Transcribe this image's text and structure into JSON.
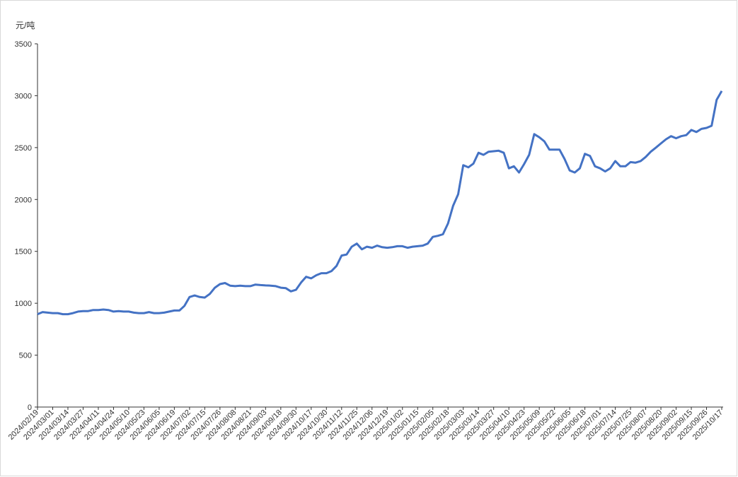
{
  "chart_data": {
    "type": "line",
    "y_label": "元/吨",
    "ylim": [
      0,
      3500
    ],
    "yticks": [
      0,
      500,
      1000,
      1500,
      2000,
      2500,
      3000,
      3500
    ],
    "categories": [
      "2024/02/19",
      null,
      null,
      "2024/03/01",
      null,
      null,
      "2024/03/14",
      null,
      null,
      "2024/03/27",
      null,
      null,
      "2024/04/11",
      null,
      null,
      "2024/04/24",
      null,
      null,
      "2024/05/10",
      null,
      null,
      "2024/05/23",
      null,
      null,
      "2024/06/05",
      null,
      null,
      "2024/06/19",
      null,
      null,
      "2024/07/02",
      null,
      null,
      "2024/07/15",
      null,
      null,
      "2024/07/26",
      null,
      null,
      "2024/08/08",
      null,
      null,
      "2024/08/21",
      null,
      null,
      "2024/09/03",
      null,
      null,
      "2024/09/18",
      null,
      null,
      "2024/09/30",
      null,
      null,
      "2024/10/17",
      null,
      null,
      "2024/10/30",
      null,
      null,
      "2024/11/12",
      null,
      null,
      "2024/11/25",
      null,
      null,
      "2024/12/06",
      null,
      null,
      "2024/12/19",
      null,
      null,
      "2025/01/02",
      null,
      null,
      "2025/01/15",
      null,
      null,
      "2025/02/05",
      null,
      null,
      "2025/02/18",
      null,
      null,
      "2025/03/03",
      null,
      null,
      "2025/03/14",
      null,
      null,
      "2025/03/27",
      null,
      null,
      "2025/04/10",
      null,
      null,
      "2025/04/23",
      null,
      null,
      "2025/05/09",
      null,
      null,
      "2025/05/22",
      null,
      null,
      "2025/06/05",
      null,
      null,
      "2025/06/18",
      null,
      null,
      "2025/07/01",
      null,
      null,
      "2025/07/14",
      null,
      null,
      "2025/07/25",
      null,
      null,
      "2025/08/07",
      null,
      null,
      "2025/08/20",
      null,
      null,
      "2025/09/02",
      null,
      null,
      "2025/09/15",
      null,
      null,
      "2025/09/26",
      null,
      null,
      "2025/10/17"
    ],
    "series": [
      {
        "color": "#4472c4",
        "values": [
          895,
          915,
          910,
          905,
          905,
          895,
          895,
          905,
          920,
          925,
          925,
          935,
          935,
          940,
          935,
          920,
          925,
          920,
          920,
          910,
          905,
          905,
          915,
          905,
          905,
          910,
          920,
          930,
          930,
          975,
          1060,
          1075,
          1060,
          1055,
          1090,
          1150,
          1185,
          1195,
          1170,
          1165,
          1170,
          1165,
          1165,
          1180,
          1175,
          1172,
          1170,
          1165,
          1150,
          1145,
          1115,
          1130,
          1200,
          1255,
          1240,
          1270,
          1290,
          1290,
          1310,
          1360,
          1460,
          1470,
          1545,
          1575,
          1520,
          1545,
          1535,
          1555,
          1540,
          1535,
          1540,
          1550,
          1550,
          1535,
          1545,
          1550,
          1555,
          1575,
          1640,
          1650,
          1665,
          1770,
          1940,
          2050,
          2330,
          2310,
          2345,
          2450,
          2430,
          2460,
          2465,
          2470,
          2450,
          2300,
          2320,
          2260,
          2340,
          2430,
          2630,
          2600,
          2560,
          2480,
          2480,
          2480,
          2390,
          2280,
          2260,
          2300,
          2440,
          2420,
          2320,
          2300,
          2270,
          2300,
          2370,
          2320,
          2320,
          2360,
          2355,
          2370,
          2410,
          2460,
          2500,
          2540,
          2580,
          2610,
          2590,
          2610,
          2620,
          2670,
          2650,
          2680,
          2690,
          2710,
          2960,
          3045
        ]
      }
    ]
  }
}
